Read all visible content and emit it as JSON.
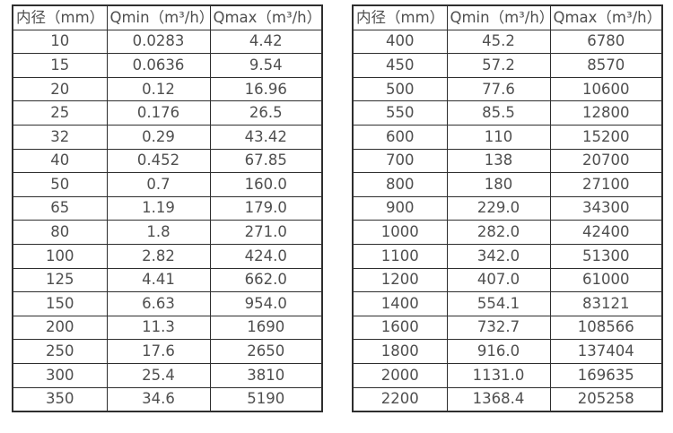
{
  "page": {
    "background": "#ffffff",
    "border_color": "#2e2e2e",
    "text_color": "#4f4f4f"
  },
  "tables": [
    {
      "name": "flow-table-small-diameters",
      "headers": [
        "内径（mm）",
        "Qmin（m³/h）",
        "Qmax（m³/h）"
      ],
      "rows": [
        [
          "10",
          "0.0283",
          "4.42"
        ],
        [
          "15",
          "0.0636",
          "9.54"
        ],
        [
          "20",
          "0.12",
          "16.96"
        ],
        [
          "25",
          "0.176",
          "26.5"
        ],
        [
          "32",
          "0.29",
          "43.42"
        ],
        [
          "40",
          "0.452",
          "67.85"
        ],
        [
          "50",
          "0.7",
          "160.0"
        ],
        [
          "65",
          "1.19",
          "179.0"
        ],
        [
          "80",
          "1.8",
          "271.0"
        ],
        [
          "100",
          "2.82",
          "424.0"
        ],
        [
          "125",
          "4.41",
          "662.0"
        ],
        [
          "150",
          "6.63",
          "954.0"
        ],
        [
          "200",
          "11.3",
          "1690"
        ],
        [
          "250",
          "17.6",
          "2650"
        ],
        [
          "300",
          "25.4",
          "3810"
        ],
        [
          "350",
          "34.6",
          "5190"
        ]
      ]
    },
    {
      "name": "flow-table-large-diameters",
      "headers": [
        "内径（mm）",
        "Qmin（m³/h）",
        "Qmax（m³/h）"
      ],
      "rows": [
        [
          "400",
          "45.2",
          "6780"
        ],
        [
          "450",
          "57.2",
          "8570"
        ],
        [
          "500",
          "77.6",
          "10600"
        ],
        [
          "550",
          "85.5",
          "12800"
        ],
        [
          "600",
          "110",
          "15200"
        ],
        [
          "700",
          "138",
          "20700"
        ],
        [
          "800",
          "180",
          "27100"
        ],
        [
          "900",
          "229.0",
          "34300"
        ],
        [
          "1000",
          "282.0",
          "42400"
        ],
        [
          "1100",
          "342.0",
          "51300"
        ],
        [
          "1200",
          "407.0",
          "61000"
        ],
        [
          "1400",
          "554.1",
          "83121"
        ],
        [
          "1600",
          "732.7",
          "108566"
        ],
        [
          "1800",
          "916.0",
          "137404"
        ],
        [
          "2000",
          "1131.0",
          "169635"
        ],
        [
          "2200",
          "1368.4",
          "205258"
        ]
      ]
    }
  ]
}
